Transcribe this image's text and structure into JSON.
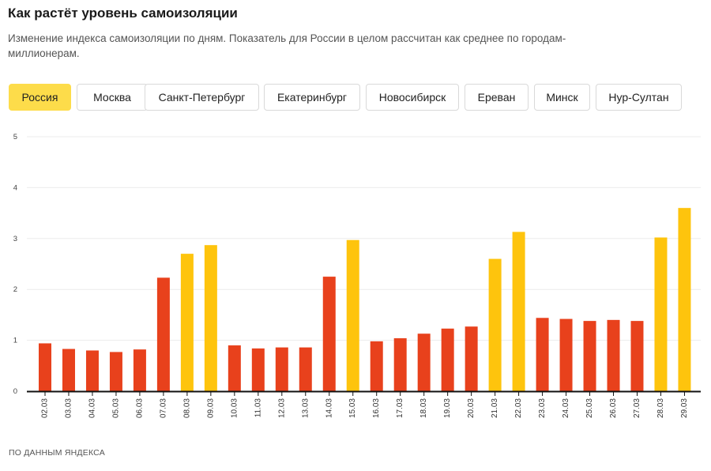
{
  "header": {
    "title": "Как растёт уровень самоизоляции",
    "subtitle": "Изменение индекса самоизоляции по дням. Показатель для России в целом рассчитан как среднее по городам-миллионерам."
  },
  "tabs": [
    {
      "label": "Россия",
      "active": true
    },
    {
      "label": "Москва",
      "active": false
    },
    {
      "label": "Санкт-Петербург",
      "active": false
    },
    {
      "label": "Екатеринбург",
      "active": false
    },
    {
      "label": "Новосибирск",
      "active": false
    },
    {
      "label": "Ереван",
      "active": false
    },
    {
      "label": "Минск",
      "active": false
    },
    {
      "label": "Нур-Султан",
      "active": false
    }
  ],
  "footer": {
    "source": "ПО ДАННЫМ ЯНДЕКСА"
  },
  "colors": {
    "weekday": "#e8411c",
    "weekend": "#fec40d",
    "grid": "#ececec",
    "axis": "#111111",
    "active_tab": "#fddc4a"
  },
  "chart_data": {
    "type": "bar",
    "categories": [
      "02.03",
      "03.03",
      "04.03",
      "05.03",
      "06.03",
      "07.03",
      "08.03",
      "09.03",
      "10.03",
      "11.03",
      "12.03",
      "13.03",
      "14.03",
      "15.03",
      "16.03",
      "17.03",
      "18.03",
      "19.03",
      "20.03",
      "21.03",
      "22.03",
      "23.03",
      "24.03",
      "25.03",
      "26.03",
      "27.03",
      "28.03",
      "29.03"
    ],
    "values": [
      0.94,
      0.83,
      0.8,
      0.77,
      0.82,
      2.23,
      2.7,
      2.87,
      0.9,
      0.84,
      0.86,
      0.86,
      2.25,
      2.97,
      0.98,
      1.04,
      1.13,
      1.23,
      1.27,
      2.6,
      3.13,
      1.44,
      1.42,
      1.38,
      1.4,
      1.38,
      3.02,
      3.6
    ],
    "highlight": [
      false,
      false,
      false,
      false,
      false,
      false,
      true,
      true,
      false,
      false,
      false,
      false,
      false,
      true,
      false,
      false,
      false,
      false,
      false,
      true,
      true,
      false,
      false,
      false,
      false,
      false,
      true,
      true
    ],
    "ylim": [
      0,
      5
    ],
    "yticks": [
      0,
      1,
      2,
      3,
      4,
      5
    ],
    "grid": true
  }
}
